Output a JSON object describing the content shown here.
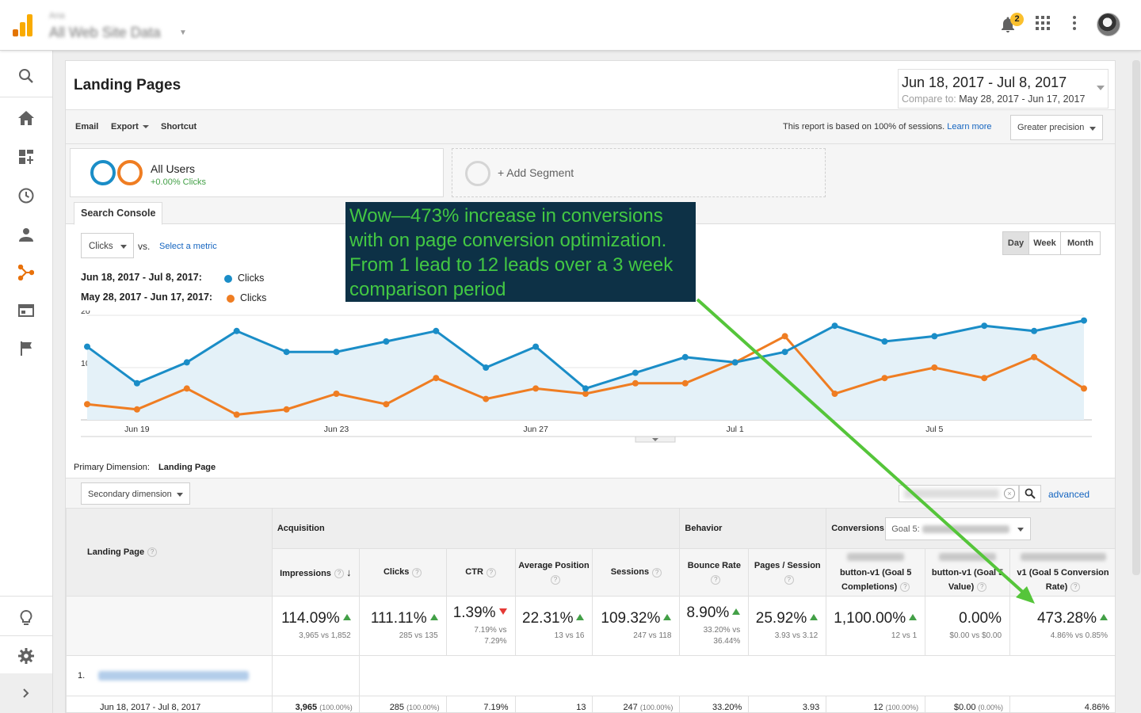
{
  "topbar": {
    "account_small": "Ana",
    "account_big": "All Web Site Data",
    "notification_count": "2",
    "icons": [
      "notifications-bell-icon",
      "apps-grid-icon",
      "more-vert-icon",
      "avatar"
    ]
  },
  "sidebar": {
    "items": [
      "search-icon",
      "home-icon",
      "dashboard-icon",
      "realtime-clock-icon",
      "audience-person-icon",
      "acquisition-icon",
      "behavior-icon",
      "conversions-flag-icon"
    ],
    "bottom": [
      "discover-bulb-icon",
      "admin-gear-icon",
      "expand-chevron-icon"
    ]
  },
  "report": {
    "title": "Landing Pages",
    "date_range": "Jun 18, 2017 - Jul 8, 2017",
    "compare_label": "Compare to:",
    "compare_range": "May 28, 2017 - Jun 17, 2017"
  },
  "toolbar": {
    "email": "Email",
    "export": "Export",
    "shortcut": "Shortcut",
    "sessions_note": "This report is based on 100% of sessions.",
    "learn_more": "Learn more",
    "precision": "Greater precision"
  },
  "segments": {
    "name": "All Users",
    "sub": "+0.00% Clicks",
    "add": "+ Add Segment"
  },
  "tabs": {
    "search_console": "Search Console"
  },
  "chart_controls": {
    "metric": "Clicks",
    "vs": "vs.",
    "select_metric": "Select a metric",
    "legend": [
      {
        "range": "Jun 18, 2017 - Jul 8, 2017:",
        "metric": "Clicks",
        "color": "#1a8dc7"
      },
      {
        "range": "May 28, 2017 - Jun 17, 2017:",
        "metric": "Clicks",
        "color": "#ef7d22"
      }
    ],
    "period_day": "Day",
    "period_week": "Week",
    "period_month": "Month"
  },
  "callout": {
    "text": "Wow—473% increase in conversions with on page conversion optimization. From 1 lead to 12 leads over a 3 week comparison period",
    "color": "#43c843"
  },
  "chart_data": {
    "type": "line",
    "x": [
      "Jun 18",
      "Jun 19",
      "Jun 20",
      "Jun 21",
      "Jun 22",
      "Jun 23",
      "Jun 24",
      "Jun 25",
      "Jun 26",
      "Jun 27",
      "Jun 28",
      "Jun 29",
      "Jun 30",
      "Jul 1",
      "Jul 2",
      "Jul 3",
      "Jul 4",
      "Jul 5",
      "Jul 6",
      "Jul 7",
      "Jul 8"
    ],
    "x_tick_labels": [
      "Jun 19",
      "Jun 23",
      "Jun 27",
      "Jul 1",
      "Jul 5"
    ],
    "y_tick_labels": [
      "10",
      "20"
    ],
    "ylim": [
      0,
      20
    ],
    "series": [
      {
        "name": "Clicks",
        "color": "#1a8dc7",
        "area": true,
        "values": [
          14,
          7,
          11,
          17,
          13,
          13,
          15,
          17,
          10,
          14,
          6,
          9,
          12,
          11,
          13,
          18,
          15,
          16,
          18,
          17,
          19
        ]
      },
      {
        "name": "Clicks",
        "color": "#ef7d22",
        "area": false,
        "values": [
          3,
          2,
          6,
          1,
          2,
          5,
          3,
          8,
          4,
          6,
          5,
          7,
          7,
          11,
          16,
          5,
          8,
          10,
          8,
          12,
          6
        ]
      }
    ],
    "grid": true
  },
  "table_controls": {
    "primary_dimension_label": "Primary Dimension:",
    "primary_dimension_value": "Landing Page",
    "secondary_dimension": "Secondary dimension",
    "advanced": "advanced"
  },
  "table": {
    "landing_page_header": "Landing Page",
    "acquisition": "Acquisition",
    "behavior": "Behavior",
    "conversions": "Conversions",
    "goal_select": "Goal 5:",
    "columns": [
      {
        "label": "Impressions",
        "value": "114.09%",
        "trend": "up",
        "detail": "3,965 vs 1,852"
      },
      {
        "label": "Clicks",
        "value": "111.11%",
        "trend": "up",
        "detail": "285 vs 135"
      },
      {
        "label": "CTR",
        "value": "1.39%",
        "trend": "down",
        "detail": "7.19% vs 7.29%"
      },
      {
        "label": "Average Position",
        "value": "22.31%",
        "trend": "up",
        "detail": "13 vs 16"
      },
      {
        "label": "Sessions",
        "value": "109.32%",
        "trend": "up",
        "detail": "247 vs 118"
      },
      {
        "label": "Bounce Rate",
        "value": "8.90%",
        "trend": "up",
        "detail": "33.20% vs 36.44%"
      },
      {
        "label": "Pages / Session",
        "value": "25.92%",
        "trend": "up",
        "detail": "3.93 vs 3.12"
      },
      {
        "label": "button-v1 (Goal 5 Completions)",
        "value": "1,100.00%",
        "trend": "up",
        "detail": "12 vs 1"
      },
      {
        "label": "button-v1 (Goal 5 Value)",
        "value": "0.00%",
        "trend": "",
        "detail": "$0.00 vs $0.00"
      },
      {
        "label": "v1 (Goal 5 Conversion Rate)",
        "value": "473.28%",
        "trend": "up",
        "detail": "4.86% vs 0.85%"
      }
    ],
    "row1_index": "1.",
    "row1_range": "Jun 18, 2017 - Jul 8, 2017",
    "row1_values": [
      "3,965",
      "285",
      "7.19%",
      "13",
      "247",
      "33.20%",
      "3.93",
      "12",
      "$0.00",
      "4.86%"
    ],
    "row1_pcts": [
      "(100.00%)",
      "(100.00%)",
      "",
      "",
      "(100.00%)",
      "",
      "",
      "(100.00%)",
      "(0.00%)",
      ""
    ]
  }
}
